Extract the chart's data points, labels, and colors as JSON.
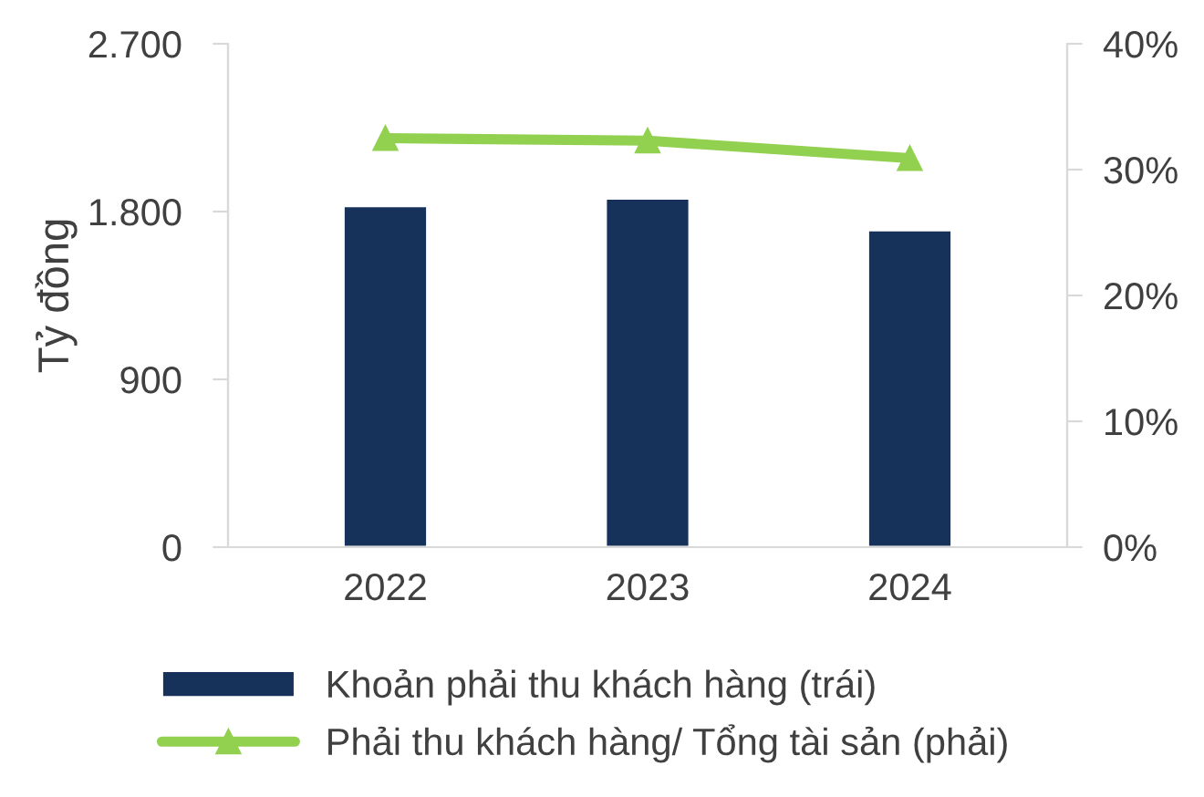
{
  "chart_data": {
    "type": "bar",
    "ylabel": "Tỷ đồng",
    "categories": [
      "2022",
      "2023",
      "2024"
    ],
    "series": [
      {
        "name": "Khoản phải thu khách hàng (trái)",
        "color": "#17325a",
        "values": [
          1830,
          1870,
          1700
        ]
      },
      {
        "name": "Phải thu khách hàng/ Tổng tài sản (phải)",
        "type": "line",
        "axis": "y2",
        "color": "#92d050",
        "marker": "triangle",
        "values": [
          32.5,
          32.3,
          30.9
        ]
      }
    ],
    "ylim": [
      0,
      2700
    ],
    "yticks": [
      {
        "value": 0,
        "label": "0"
      },
      {
        "value": 900,
        "label": "900"
      },
      {
        "value": 1800,
        "label": "1.800"
      },
      {
        "value": 2700,
        "label": "2.700"
      }
    ],
    "y2lim": [
      0,
      40
    ],
    "y2ticks": [
      {
        "value": 0,
        "label": "0%"
      },
      {
        "value": 10,
        "label": "10%"
      },
      {
        "value": 20,
        "label": "20%"
      },
      {
        "value": 30,
        "label": "30%"
      },
      {
        "value": 40,
        "label": "40%"
      }
    ],
    "grid": false,
    "legend": "bottom"
  }
}
